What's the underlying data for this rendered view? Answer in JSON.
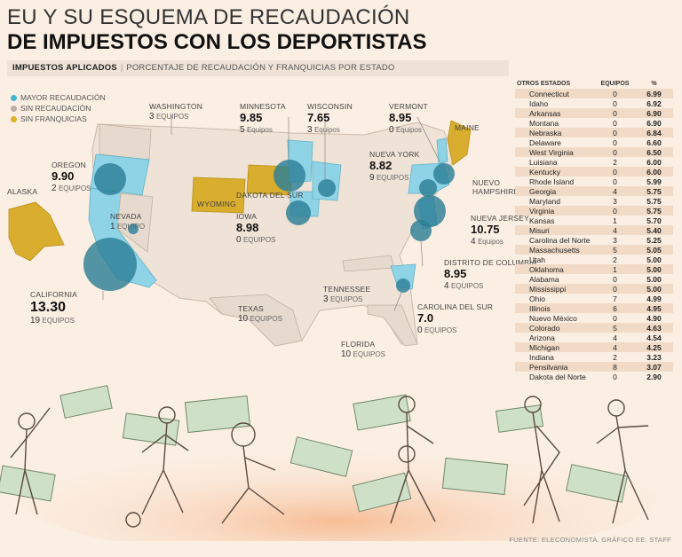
{
  "header": {
    "title_line1": "EU Y SU ESQUEMA DE RECAUDACIÓN",
    "title_line2": "DE IMPUESTOS CON LOS DEPORTISTAS",
    "subbar_label": "IMPUESTOS APLICADOS",
    "subbar_desc": "PORCENTAJE DE RECAUDACIÓN Y FRANQUICIAS POR ESTADO"
  },
  "legend": {
    "items": [
      {
        "label": "MAYOR RECAUDACIÓN",
        "color": "#3fb6d2"
      },
      {
        "label": "SIN RECAUDACIÓN",
        "color": "#b9aea4"
      },
      {
        "label": "SIN FRANQUICIAS",
        "color": "#e0b12a"
      }
    ]
  },
  "colors": {
    "high": "#8fd3e6",
    "none": "#e4d7cb",
    "nofr": "#d9ad2e",
    "bubble": "#2c7f96"
  },
  "states": {
    "washington": {
      "name": "WASHINGTON",
      "teams": "3",
      "eq": "EQUIPOS"
    },
    "oregon": {
      "name": "OREGON",
      "rate": "9.90",
      "teams": "2",
      "eq": "EQUIPOS"
    },
    "alaska": {
      "name": "ALASKA"
    },
    "nevada": {
      "name": "NEVADA",
      "teams": "1",
      "eq": "EQUIPO"
    },
    "california": {
      "name": "CALIFORNIA",
      "rate": "13.30",
      "teams": "19",
      "eq": "EQUIPOS"
    },
    "minnesota": {
      "name": "MINNESOTA",
      "rate": "9.85",
      "teams": "5",
      "eq": "Equipos"
    },
    "wisconsin": {
      "name": "WISCONSIN",
      "rate": "7.65",
      "teams": "3",
      "eq": "Equipos"
    },
    "vermont": {
      "name": "VERMONT",
      "rate": "8.95",
      "teams": "0",
      "eq": "Equipos"
    },
    "maine": {
      "name": "MAINE"
    },
    "nuevayork": {
      "name": "NUEVA YORK",
      "rate": "8.82",
      "teams": "9",
      "eq": "EQUIPOS"
    },
    "nuevohampshire": {
      "name": "NUEVO HAMPSHIRE"
    },
    "dakotasur": {
      "name": "DAKOTA DEL SUR"
    },
    "wyoming": {
      "name": "WYOMING"
    },
    "iowa": {
      "name": "IOWA",
      "rate": "8.98",
      "teams": "0",
      "eq": "EQUIPOS"
    },
    "nuevajersey": {
      "name": "NUEVA JERSEY",
      "rate": "10.75",
      "teams": "4",
      "eq": "Equipos"
    },
    "columbia": {
      "name": "DISTRITO DE COLUMBIA",
      "rate": "8.95",
      "teams": "4",
      "eq": "EQUIPOS"
    },
    "tennessee": {
      "name": "TENNESSEE",
      "teams": "3",
      "eq": "EQUIPOS"
    },
    "texas": {
      "name": "TEXAS",
      "teams": "10",
      "eq": "EQUIPOS"
    },
    "carolinasur": {
      "name": "CAROLINA DEL SUR",
      "rate": "7.0",
      "teams": "0",
      "eq": "EQUIPOS"
    },
    "florida": {
      "name": "FLORIDA",
      "teams": "10",
      "eq": "EQUIPOS"
    }
  },
  "table": {
    "headers": [
      "OTROS ESTADOS",
      "EQUIPOS",
      "%"
    ],
    "rows": [
      {
        "state": "Connecticut",
        "teams": "0",
        "pct": "6.99"
      },
      {
        "state": "Idaho",
        "teams": "0",
        "pct": "6.92"
      },
      {
        "state": "Arkansas",
        "teams": "0",
        "pct": "6.90"
      },
      {
        "state": "Montana",
        "teams": "0",
        "pct": "6.90"
      },
      {
        "state": "Nebraska",
        "teams": "0",
        "pct": "6.84"
      },
      {
        "state": "Delaware",
        "teams": "0",
        "pct": "6.60"
      },
      {
        "state": "West Virginia",
        "teams": "0",
        "pct": "6.50"
      },
      {
        "state": "Luisiana",
        "teams": "2",
        "pct": "6.00"
      },
      {
        "state": "Kentucky",
        "teams": "0",
        "pct": "6.00"
      },
      {
        "state": "Rhode Island",
        "teams": "0",
        "pct": "5.99"
      },
      {
        "state": "Georgia",
        "teams": "4",
        "pct": "5.75"
      },
      {
        "state": "Maryland",
        "teams": "3",
        "pct": "5.75"
      },
      {
        "state": "Virginia",
        "teams": "0",
        "pct": "5.75"
      },
      {
        "state": "Kansas",
        "teams": "1",
        "pct": "5.70"
      },
      {
        "state": "Misuri",
        "teams": "4",
        "pct": "5.40"
      },
      {
        "state": "Carolina del Norte",
        "teams": "3",
        "pct": "5.25"
      },
      {
        "state": "Massachusetts",
        "teams": "5",
        "pct": "5.05"
      },
      {
        "state": "Utah",
        "teams": "2",
        "pct": "5.00"
      },
      {
        "state": "Oklahoma",
        "teams": "1",
        "pct": "5.00"
      },
      {
        "state": "Alabama",
        "teams": "0",
        "pct": "5.00"
      },
      {
        "state": "Mississippi",
        "teams": "0",
        "pct": "5.00"
      },
      {
        "state": "Ohio",
        "teams": "7",
        "pct": "4.99"
      },
      {
        "state": "Illinois",
        "teams": "6",
        "pct": "4.95"
      },
      {
        "state": "Nuevo México",
        "teams": "0",
        "pct": "4.90"
      },
      {
        "state": "Colorado",
        "teams": "5",
        "pct": "4.63"
      },
      {
        "state": "Arizona",
        "teams": "4",
        "pct": "4.54"
      },
      {
        "state": "Michigan",
        "teams": "4",
        "pct": "4.25"
      },
      {
        "state": "Indiana",
        "teams": "2",
        "pct": "3.23"
      },
      {
        "state": "Pensilvania",
        "teams": "8",
        "pct": "3.07"
      },
      {
        "state": "Dakota del Norte",
        "teams": "0",
        "pct": "2.90"
      }
    ]
  },
  "source": "FUENTE: ELECONOMISTA. GRÁFICO EE: STAFF"
}
